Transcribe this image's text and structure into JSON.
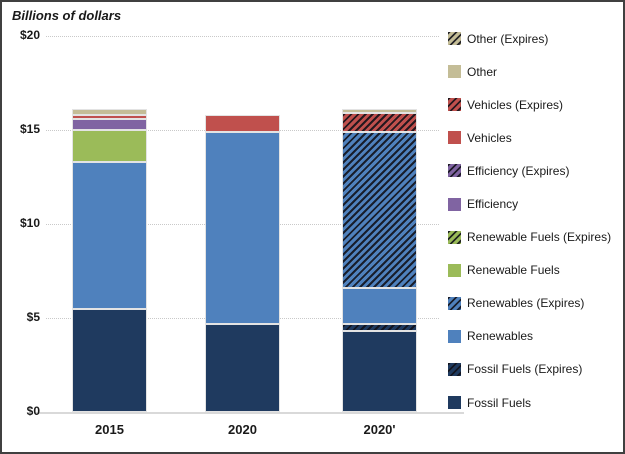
{
  "chart_data": {
    "type": "bar",
    "stacked": true,
    "title": "Billions of dollars",
    "unit": "billions of dollars",
    "categories": [
      "2015",
      "2020",
      "2020'"
    ],
    "ylim": [
      0,
      20
    ],
    "yticks": [
      {
        "value": 0,
        "label": "$0"
      },
      {
        "value": 5,
        "label": "$5"
      },
      {
        "value": 10,
        "label": "$10"
      },
      {
        "value": 15,
        "label": "$15"
      },
      {
        "value": 20,
        "label": "$20"
      }
    ],
    "grid": "horizontal-dotted",
    "legend_position": "right",
    "legend_order": "top-to-bottom is reverse of stack order",
    "series": [
      {
        "name": "Fossil Fuels",
        "color": "#1F3A5F",
        "hatched": false,
        "values": [
          5.5,
          4.7,
          4.3
        ]
      },
      {
        "name": "Fossil Fuels (Expires)",
        "color": "#1F3A5F",
        "hatched": true,
        "values": [
          0,
          0,
          0.4
        ]
      },
      {
        "name": "Renewables",
        "color": "#4F81BD",
        "hatched": false,
        "values": [
          7.8,
          10.2,
          1.9
        ]
      },
      {
        "name": "Renewables (Expires)",
        "color": "#4F81BD",
        "hatched": true,
        "values": [
          0,
          0,
          8.3
        ]
      },
      {
        "name": "Renewable Fuels",
        "color": "#9BBB59",
        "hatched": false,
        "values": [
          1.7,
          0,
          0
        ]
      },
      {
        "name": "Renewable Fuels (Expires)",
        "color": "#9BBB59",
        "hatched": true,
        "values": [
          0,
          0,
          0
        ]
      },
      {
        "name": "Efficiency",
        "color": "#8064A2",
        "hatched": false,
        "values": [
          0.6,
          0,
          0
        ]
      },
      {
        "name": "Efficiency (Expires)",
        "color": "#8064A2",
        "hatched": true,
        "values": [
          0,
          0,
          0
        ]
      },
      {
        "name": "Vehicles",
        "color": "#C0504D",
        "hatched": false,
        "values": [
          0.2,
          0.9,
          0
        ]
      },
      {
        "name": "Vehicles (Expires)",
        "color": "#C0504D",
        "hatched": true,
        "values": [
          0,
          0,
          1.0
        ]
      },
      {
        "name": "Other",
        "color": "#C4BD97",
        "hatched": false,
        "values": [
          0.3,
          0,
          0.2
        ]
      },
      {
        "name": "Other (Expires)",
        "color": "#C4BD97",
        "hatched": true,
        "values": [
          0,
          0,
          0
        ]
      }
    ],
    "totals": [
      16.1,
      15.8,
      16.1
    ],
    "colors": {
      "gridline": "#c9c9c9",
      "axis_line": "#d9d9d9",
      "hatch_overlay": "#101018",
      "frame_border": "#404040",
      "background": "#ffffff"
    }
  }
}
